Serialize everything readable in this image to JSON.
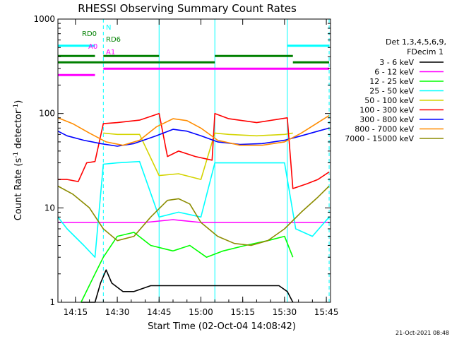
{
  "chart_data": {
    "type": "line",
    "title": "RHESSI Observing Summary Count Rates",
    "xlabel": "Start Time (02-Oct-04 14:08:42)",
    "ylabel_main": "Count Rate (s",
    "ylabel_sup1": "-1",
    "ylabel_mid": " detector",
    "ylabel_sup2": "-1",
    "ylabel_end": ")",
    "timestamp": "21-Oct-2021 08:48",
    "xlim": [
      "14:08:42",
      "15:46:30"
    ],
    "ylim": [
      1,
      1000
    ],
    "yscale": "log",
    "x_ticks": [
      "14:15",
      "14:30",
      "14:45",
      "15:00",
      "15:15",
      "15:30",
      "15:45"
    ],
    "y_ticks": [
      "1",
      "10",
      "100",
      "1000"
    ],
    "legend": {
      "placement": "right",
      "header1": "Det 1,3,4,5,6,9,",
      "header2": "FDecim 1",
      "entries": [
        {
          "label": "3 - 6 keV",
          "color": "#000000"
        },
        {
          "label": "6 - 12 keV",
          "color": "#ff00ff"
        },
        {
          "label": "12 - 25 keV",
          "color": "#00ff00"
        },
        {
          "label": "25 - 50 keV",
          "color": "#00ffff"
        },
        {
          "label": "50 - 100 keV",
          "color": "#d4d400"
        },
        {
          "label": "100 - 300 keV",
          "color": "#ff0000"
        },
        {
          "label": "300 - 800 keV",
          "color": "#0000ff"
        },
        {
          "label": "800 - 7000 keV",
          "color": "#ff8c00"
        },
        {
          "label": "7000 - 15000 keV",
          "color": "#8c8c00"
        }
      ]
    },
    "flag_labels": {
      "N": "N",
      "RD0": "RD0",
      "RD6": "RD6",
      "A0": "A0",
      "A1": "A1"
    },
    "night_boundaries": [
      "14:08:42",
      "14:25:00",
      "15:31:00",
      "15:46:00"
    ],
    "saa_boundaries": [
      "14:45:00",
      "15:05:00"
    ],
    "series": [
      {
        "name": "3 - 6 keV",
        "color": "#000000",
        "x": [
          "14:17",
          "14:22",
          "14:24",
          "14:26",
          "14:28",
          "14:32",
          "14:36",
          "14:42",
          "14:45",
          "14:52",
          "14:58",
          "15:04",
          "15:10",
          "15:16",
          "15:22",
          "15:28",
          "15:31",
          "15:33"
        ],
        "y": [
          1,
          1,
          1.6,
          2.2,
          1.6,
          1.3,
          1.3,
          1.5,
          1.5,
          1.5,
          1.5,
          1.5,
          1.5,
          1.5,
          1.5,
          1.5,
          1.3,
          1
        ]
      },
      {
        "name": "6 - 12 keV",
        "color": "#ff00ff",
        "x": [
          "14:08:42",
          "14:15",
          "14:22",
          "14:24",
          "14:30",
          "14:40",
          "14:50",
          "15:00",
          "15:10",
          "15:20",
          "15:30",
          "15:36",
          "15:42",
          "15:46"
        ],
        "y": [
          7,
          7,
          7,
          7,
          7,
          7,
          7.5,
          7,
          7,
          7,
          7,
          7,
          7,
          7
        ]
      },
      {
        "name": "12 - 25 keV",
        "color": "#00ff00",
        "x": [
          "14:17",
          "14:22",
          "14:25",
          "14:30",
          "14:36",
          "14:42",
          "14:50",
          "14:56",
          "15:02",
          "15:08",
          "15:16",
          "15:24",
          "15:30",
          "15:33"
        ],
        "y": [
          1,
          2,
          3,
          5,
          5.5,
          4,
          3.5,
          4,
          3,
          3.5,
          4,
          4.5,
          5,
          3
        ]
      },
      {
        "name": "25 - 50 keV",
        "color": "#00ffff",
        "x": [
          "14:08:42",
          "14:12",
          "14:18",
          "14:22",
          "14:25",
          "14:30",
          "14:38",
          "14:45",
          "14:52",
          "15:00",
          "15:05",
          "15:10",
          "15:20",
          "15:30",
          "15:34",
          "15:40",
          "15:46"
        ],
        "y": [
          8,
          6,
          4,
          3,
          29,
          30,
          31,
          8,
          9,
          8,
          30,
          30,
          30,
          30,
          6,
          5,
          8
        ]
      },
      {
        "name": "50 - 100 keV",
        "color": "#d4d400",
        "x": [
          "14:25",
          "14:30",
          "14:38",
          "14:45",
          "14:52",
          "15:00",
          "15:05",
          "15:10",
          "15:20",
          "15:30",
          "15:33"
        ],
        "y": [
          62,
          60,
          60,
          22,
          23,
          20,
          62,
          60,
          58,
          60,
          62
        ]
      },
      {
        "name": "100 - 300 keV",
        "color": "#ff0000",
        "x": [
          "14:08:42",
          "14:12",
          "14:16",
          "14:19",
          "14:22",
          "14:25",
          "14:30",
          "14:38",
          "14:45",
          "14:48",
          "14:52",
          "14:58",
          "15:04",
          "15:05",
          "15:10",
          "15:20",
          "15:31",
          "15:33",
          "15:38",
          "15:42",
          "15:46"
        ],
        "y": [
          20,
          20,
          19,
          30,
          31,
          78,
          80,
          85,
          100,
          35,
          40,
          35,
          32,
          100,
          88,
          80,
          90,
          16,
          18,
          20,
          24
        ]
      },
      {
        "name": "300 - 800 keV",
        "color": "#0000ff",
        "x": [
          "14:08:42",
          "14:12",
          "14:18",
          "14:24",
          "14:30",
          "14:36",
          "14:44",
          "14:50",
          "14:55",
          "15:00",
          "15:06",
          "15:14",
          "15:22",
          "15:30",
          "15:36",
          "15:42",
          "15:46"
        ],
        "y": [
          65,
          58,
          52,
          48,
          45,
          48,
          58,
          68,
          65,
          58,
          50,
          47,
          48,
          52,
          58,
          65,
          70
        ]
      },
      {
        "name": "800 - 7000 keV",
        "color": "#ff8c00",
        "x": [
          "14:08:42",
          "14:14",
          "14:20",
          "14:26",
          "14:32",
          "14:38",
          "14:44",
          "14:50",
          "14:55",
          "15:00",
          "15:06",
          "15:14",
          "15:22",
          "15:30",
          "15:36",
          "15:42",
          "15:46"
        ],
        "y": [
          90,
          78,
          62,
          50,
          46,
          52,
          72,
          88,
          84,
          70,
          52,
          46,
          46,
          50,
          62,
          80,
          95
        ]
      },
      {
        "name": "7000 - 15000 keV",
        "color": "#8c8c00",
        "x": [
          "14:08:42",
          "14:14",
          "14:20",
          "14:25",
          "14:30",
          "14:36",
          "14:42",
          "14:48",
          "14:52",
          "14:56",
          "15:00",
          "15:06",
          "15:12",
          "15:18",
          "15:24",
          "15:30",
          "15:36",
          "15:42",
          "15:46"
        ],
        "y": [
          17,
          14,
          10,
          6,
          4.5,
          5,
          8,
          12,
          12.5,
          11,
          7,
          5,
          4.2,
          4,
          4.5,
          6,
          9,
          13,
          17
        ]
      }
    ],
    "flag_bars": [
      {
        "label": "N",
        "color": "#00ffff",
        "x": [
          [
            "14:08:42",
            "14:22:00"
          ],
          [
            "15:31:00",
            "15:46:00"
          ]
        ],
        "y_level": 0.79
      },
      {
        "label": "RD6",
        "color": "#008000",
        "x": [
          [
            "14:08:42",
            "14:22:00"
          ],
          [
            "14:25:00",
            "14:45:00"
          ],
          [
            "15:05:00",
            "15:33:00"
          ]
        ],
        "y_level": 0.71
      },
      {
        "label": "RD0",
        "color": "#008000",
        "x": [
          [
            "14:08:42",
            "14:45:00"
          ],
          [
            "14:45:00",
            "15:05:00"
          ],
          [
            "15:33:00",
            "15:46:00"
          ]
        ],
        "y_level": 0.66
      },
      {
        "label": "A0",
        "color": "#ff00ff",
        "x": [
          [
            "14:25:00",
            "15:46:00"
          ]
        ],
        "y_level": 0.61
      },
      {
        "label": "A1",
        "color": "#ff00ff",
        "x": [
          [
            "14:08:42",
            "14:22:00"
          ]
        ],
        "y_level": 0.56
      }
    ]
  }
}
